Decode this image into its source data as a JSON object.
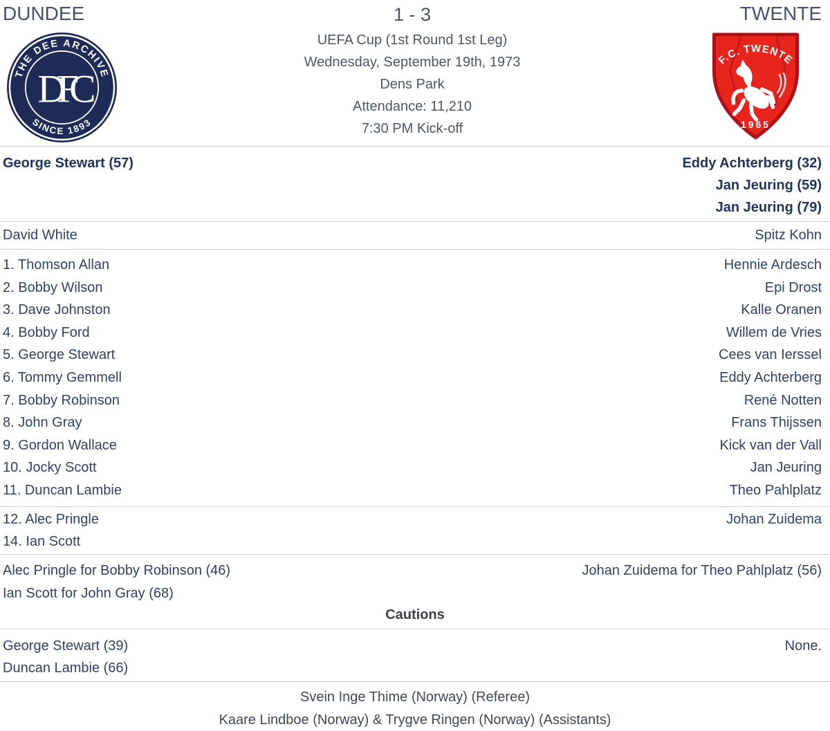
{
  "colors": {
    "dundee_navy": "#1d2b56",
    "twente_red": "#e8251d",
    "twente_border": "#ae1016",
    "name_text": "#2e4265",
    "muted_text": "#4b5568",
    "divider": "#c9ccd0"
  },
  "header": {
    "home_team": "DUNDEE",
    "away_team": "TWENTE",
    "score": "1 - 3",
    "competition": "UEFA Cup (1st Round 1st Leg)",
    "date": "Wednesday, September 19th, 1973",
    "venue": "Dens Park",
    "attendance": "Attendance: 11,210",
    "kickoff": "7:30 PM Kick-off",
    "home_badge": {
      "top": "THE DEE ARCHIVE",
      "monogram": "DFC",
      "bottom": "SINCE 1893"
    },
    "away_badge": {
      "name": "F.C. TWENTE",
      "year": "1965"
    }
  },
  "goals": {
    "home": [
      "George Stewart (57)"
    ],
    "away": [
      "Eddy Achterberg (32)",
      "Jan Jeuring (59)",
      "Jan Jeuring (79)"
    ]
  },
  "managers": {
    "home": "David White",
    "away": "Spitz Kohn"
  },
  "lineups": {
    "home": [
      "1. Thomson Allan",
      "2. Bobby Wilson",
      "3. Dave Johnston",
      "4. Bobby Ford",
      "5. George Stewart",
      "6. Tommy Gemmell",
      "7. Bobby Robinson",
      "8. John Gray",
      "9. Gordon Wallace",
      "10. Jocky Scott",
      "11. Duncan Lambie"
    ],
    "away": [
      "Hennie Ardesch",
      "Epi Drost",
      "Kalle Oranen",
      "Willem de Vries",
      "Cees van Ierssel",
      "Eddy Achterberg",
      "René Notten",
      "Frans Thijssen",
      "Kick van der Vall",
      "Jan Jeuring",
      "Theo Pahlplatz"
    ]
  },
  "substitutes": {
    "home": [
      "12. Alec Pringle",
      "14. Ian Scott"
    ],
    "away": [
      "Johan Zuidema"
    ]
  },
  "substitutions": {
    "home": [
      "Alec Pringle for Bobby Robinson (46)",
      "Ian Scott for John Gray (68)"
    ],
    "away": [
      "Johan Zuidema for Theo Pahlplatz (56)"
    ]
  },
  "cautions": {
    "heading": "Cautions",
    "home": [
      "George Stewart (39)",
      "Duncan Lambie (66)"
    ],
    "away": [
      "None."
    ]
  },
  "officials": {
    "lines": [
      "Svein Inge Thime (Norway) (Referee)",
      "Kaare Lindboe (Norway) & Trygve Ringen (Norway) (Assistants)"
    ]
  }
}
